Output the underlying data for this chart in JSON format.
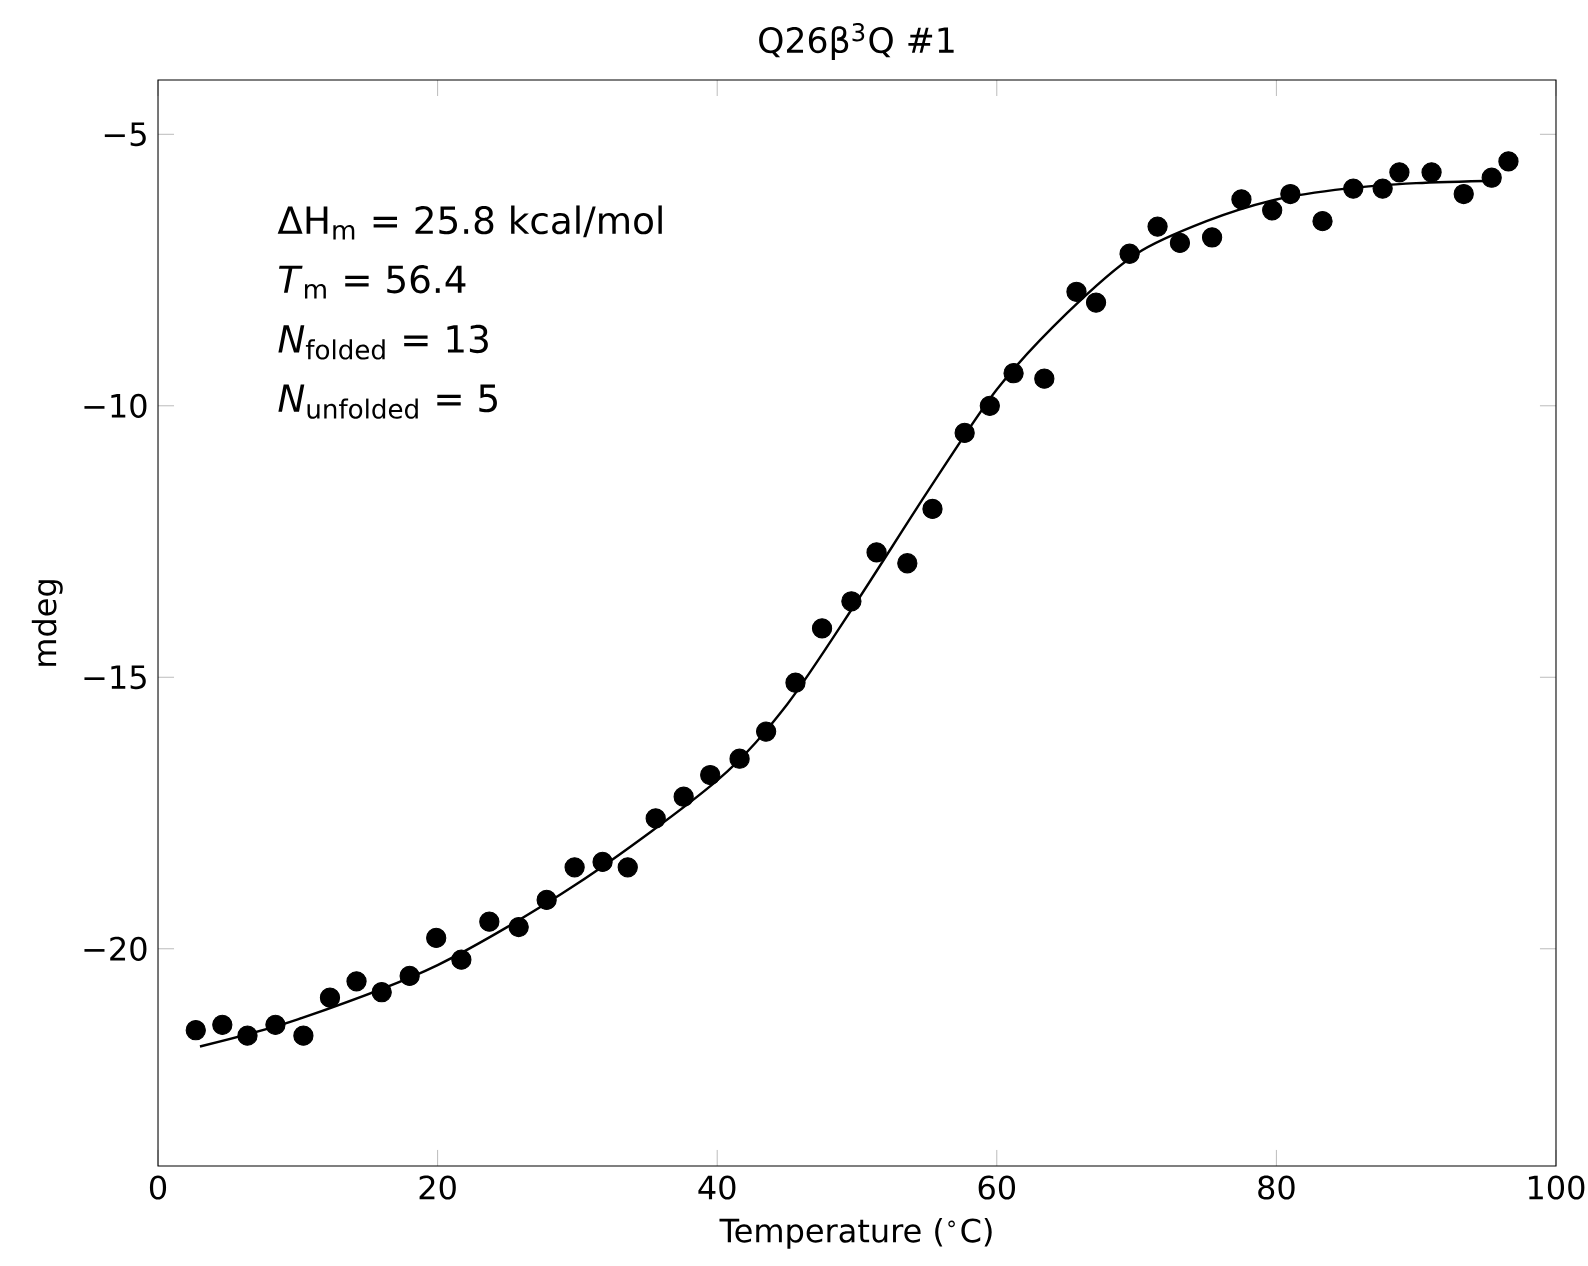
{
  "chart_data": {
    "type": "scatter",
    "title": "Q26β$^{3}$Q #1",
    "xlabel": "Temperature ($^{∘}$C)",
    "ylabel": "mdeg",
    "annotations": [
      "ΔH$_{m}$ = 25.8 kcal/mol",
      "*T*$_{m}$ = 56.4",
      "*N*$_{folded}$ = 13",
      "*N*$_{unfolded}$ = 5"
    ],
    "xlim": [
      0,
      100
    ],
    "ylim": [
      -24,
      -4
    ],
    "xticks": [
      0,
      20,
      40,
      60,
      80,
      100
    ],
    "yticks": [
      {
        "value": -5,
        "label": "−5"
      },
      {
        "value": -10,
        "label": "−10"
      },
      {
        "value": -15,
        "label": "−15"
      },
      {
        "value": -20,
        "label": "−20"
      }
    ],
    "grid": false,
    "series": [
      {
        "color": "#000000",
        "marker": "circle",
        "x": [
          2.7,
          4.6,
          6.4,
          8.4,
          10.4,
          12.3,
          14.2,
          16.0,
          18.0,
          19.9,
          21.7,
          23.7,
          25.8,
          27.8,
          29.8,
          31.8,
          33.6,
          35.6,
          37.6,
          39.5,
          41.6,
          43.5,
          45.6,
          47.5,
          49.6,
          51.4,
          53.6,
          55.4,
          57.7,
          59.5,
          61.2,
          63.4,
          65.7,
          67.1,
          69.5,
          71.5,
          73.1,
          75.4,
          77.5,
          79.7,
          81.0,
          83.3,
          85.5,
          87.6,
          88.8,
          91.1,
          93.4,
          95.4,
          96.6
        ],
        "values": [
          -21.5,
          -21.4,
          -21.6,
          -21.4,
          -21.6,
          -20.9,
          -20.6,
          -20.8,
          -20.5,
          -19.8,
          -20.2,
          -19.5,
          -19.6,
          -19.1,
          -18.5,
          -18.4,
          -18.5,
          -17.6,
          -17.2,
          -16.8,
          -16.5,
          -16.0,
          -15.1,
          -14.1,
          -13.6,
          -12.7,
          -12.9,
          -11.9,
          -10.5,
          -10.0,
          -9.4,
          -9.5,
          -7.9,
          -8.1,
          -7.2,
          -6.7,
          -7.0,
          -6.9,
          -6.2,
          -6.4,
          -6.1,
          -6.6,
          -6.0,
          -6.0,
          -5.7,
          -5.7,
          -6.1,
          -5.8,
          -5.5
        ]
      },
      {
        "type": "line",
        "color": "#000000",
        "marker": "none",
        "x": [
          3,
          10,
          20,
          30,
          40,
          45,
          50,
          55,
          60,
          65,
          70,
          75,
          80,
          85,
          90,
          96
        ],
        "values": [
          -21.8,
          -21.3,
          -20.3,
          -18.8,
          -16.9,
          -15.5,
          -13.6,
          -11.6,
          -9.7,
          -8.3,
          -7.2,
          -6.6,
          -6.2,
          -6.0,
          -5.9,
          -5.85
        ]
      }
    ]
  }
}
